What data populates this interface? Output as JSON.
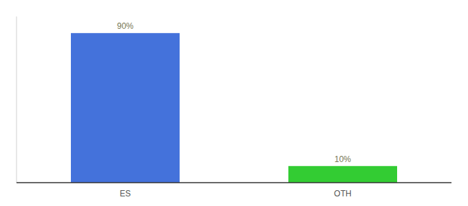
{
  "chart_data": {
    "type": "bar",
    "categories": [
      "ES",
      "OTH"
    ],
    "values": [
      90,
      10
    ],
    "value_labels": [
      "90%",
      "10%"
    ],
    "colors": [
      "#4472db",
      "#33cc33"
    ],
    "data_labels": true,
    "ylim": [
      0,
      100
    ],
    "tick_labels": "x",
    "grid": false
  }
}
